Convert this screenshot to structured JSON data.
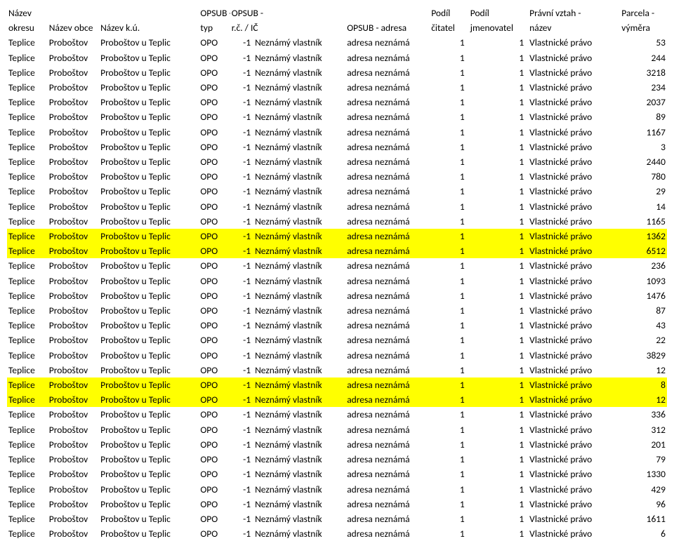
{
  "colors": {
    "highlight_bg": "#ffff00",
    "text": "#000000"
  },
  "header": {
    "row1": {
      "okres": "Název",
      "obec": "",
      "ku": "",
      "typ": "OPSUB -",
      "rc": "OPSUB -",
      "nazev": "",
      "adresa": "",
      "cit": "Podíl",
      "jmen": "Podíl",
      "vztah": "Právní vztah -",
      "vymera": "Parcela -"
    },
    "row2": {
      "okres": "okresu",
      "obec": "Název obce",
      "ku": "Název k.ú.",
      "typ": "typ",
      "rc": "r.č. / IČ",
      "nazev": "OPSUB - název",
      "adresa": "OPSUB - adresa",
      "cit": "čitatel",
      "jmen": "jmenovatel",
      "vztah": "název",
      "vymera": "výměra"
    }
  },
  "row_template": {
    "okres": "Teplice",
    "obec": "Proboštov",
    "ku": "Proboštov u Teplic",
    "typ": "OPO",
    "rc": "-1",
    "nazev": "Neznámý vlastník",
    "adresa": "adresa neznámá",
    "cit": "1",
    "jmen": "1",
    "vztah": "Vlastnické právo"
  },
  "vymera_values": [
    "53",
    "244",
    "3218",
    "234",
    "2037",
    "89",
    "1167",
    "3",
    "2440",
    "780",
    "29",
    "14",
    "1165",
    "1362",
    "6512",
    "236",
    "1093",
    "1476",
    "87",
    "43",
    "22",
    "3829",
    "12",
    "8",
    "12",
    "336",
    "312",
    "201",
    "79",
    "1330",
    "429",
    "96",
    "1611",
    "6"
  ],
  "highlight_rows": [
    13,
    14,
    23,
    24
  ]
}
